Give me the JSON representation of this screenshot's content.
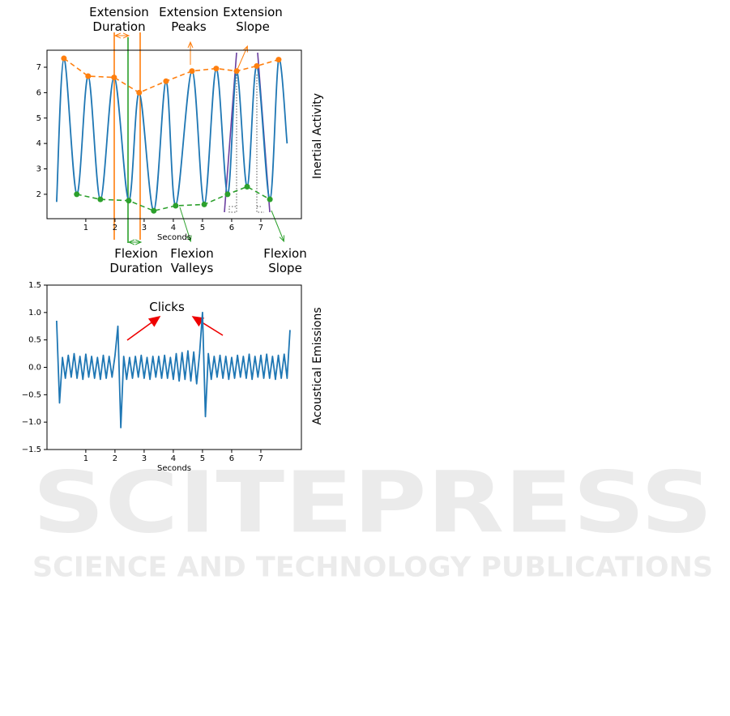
{
  "chart_data": [
    {
      "type": "line",
      "xlabel": "Seconds",
      "side_label": "Inertial Activity",
      "xlim": [
        -0.33,
        8.39
      ],
      "ylim": [
        1.04,
        7.67
      ],
      "xticks": [
        1,
        2,
        3,
        4,
        5,
        6,
        7
      ],
      "yticks": [
        2,
        3,
        4,
        5,
        6,
        7
      ],
      "annotations": [
        "Extension Duration",
        "Extension Peaks",
        "Extension Slope",
        "Flexion Duration",
        "Flexion Valleys",
        "Flexion Slope"
      ],
      "series": [
        {
          "color": "#1f77b4",
          "smooth": true,
          "x": [
            0,
            0.25,
            0.69,
            1.08,
            1.5,
            1.97,
            2.47,
            2.83,
            3.33,
            3.75,
            4.08,
            4.64,
            5.06,
            5.47,
            5.86,
            6.17,
            6.53,
            6.86,
            7.31,
            7.61,
            7.9
          ],
          "values": [
            1.7,
            7.35,
            2.0,
            6.65,
            1.8,
            6.6,
            1.75,
            6.0,
            1.35,
            6.45,
            1.55,
            6.85,
            1.6,
            6.95,
            2.0,
            6.85,
            2.3,
            7.05,
            1.8,
            7.3,
            4.0
          ]
        },
        {
          "color": "#ff7f0e",
          "dashed": true,
          "markers": true,
          "x": [
            0.25,
            1.08,
            1.97,
            2.83,
            3.75,
            4.64,
            5.47,
            6.17,
            6.86,
            7.61
          ],
          "values": [
            7.35,
            6.65,
            6.6,
            6.0,
            6.45,
            6.85,
            6.95,
            6.85,
            7.05,
            7.3
          ]
        },
        {
          "color": "#2ca02c",
          "dashed": true,
          "markers": true,
          "x": [
            0.69,
            1.5,
            2.47,
            3.33,
            4.08,
            5.06,
            5.86,
            6.53,
            7.31
          ],
          "values": [
            2.0,
            1.8,
            1.75,
            1.35,
            1.55,
            1.6,
            2.0,
            2.3,
            1.8
          ]
        }
      ]
    },
    {
      "type": "line",
      "xlabel": "Seconds",
      "side_label": "Acoustical Emissions",
      "xlim": [
        -0.33,
        8.39
      ],
      "ylim": [
        -1.5,
        1.5
      ],
      "xticks": [
        1,
        2,
        3,
        4,
        5,
        6,
        7
      ],
      "yticks": [
        {
          "value": -1.5,
          "label": "−1.5"
        },
        {
          "value": -1,
          "label": "−1.0"
        },
        {
          "value": -0.5,
          "label": "−0.5"
        },
        {
          "value": 0,
          "label": "0.0"
        },
        {
          "value": 0.5,
          "label": "0.5"
        },
        {
          "value": 1,
          "label": "1.0"
        },
        {
          "value": 1.5,
          "label": "1.5"
        }
      ],
      "annotations": [
        "Clicks"
      ],
      "series": [
        {
          "color": "#1f77b4",
          "x": [
            0,
            0.1,
            0.2,
            0.3,
            0.4,
            0.5,
            0.6,
            0.7,
            0.8,
            0.9,
            1,
            1.1,
            1.2,
            1.3,
            1.4,
            1.5,
            1.6,
            1.7,
            1.8,
            1.9,
            2,
            2.1,
            2.2,
            2.3,
            2.4,
            2.5,
            2.6,
            2.7,
            2.8,
            2.9,
            3,
            3.1,
            3.2,
            3.3,
            3.4,
            3.5,
            3.6,
            3.7,
            3.8,
            3.9,
            4,
            4.1,
            4.2,
            4.3,
            4.4,
            4.5,
            4.6,
            4.7,
            4.8,
            4.9,
            5,
            5.1,
            5.2,
            5.3,
            5.4,
            5.5,
            5.6,
            5.7,
            5.8,
            5.9,
            6,
            6.1,
            6.2,
            6.3,
            6.4,
            6.5,
            6.6,
            6.7,
            6.8,
            6.9,
            7,
            7.1,
            7.2,
            7.3,
            7.4,
            7.5,
            7.6,
            7.7,
            7.8,
            7.9,
            8
          ],
          "values": [
            0.85,
            -0.65,
            0.18,
            -0.2,
            0.22,
            -0.18,
            0.25,
            -0.2,
            0.2,
            -0.22,
            0.24,
            -0.18,
            0.2,
            -0.2,
            0.18,
            -0.22,
            0.22,
            -0.2,
            0.2,
            -0.18,
            0.21,
            0.75,
            -1.1,
            0.2,
            -0.22,
            0.18,
            -0.2,
            0.2,
            -0.18,
            0.22,
            -0.2,
            0.18,
            -0.22,
            0.2,
            -0.18,
            0.2,
            -0.2,
            0.22,
            -0.2,
            0.18,
            -0.22,
            0.25,
            -0.25,
            0.27,
            -0.22,
            0.3,
            -0.25,
            0.28,
            -0.3,
            0.25,
            1.0,
            -0.9,
            0.25,
            -0.22,
            0.2,
            -0.18,
            0.22,
            -0.2,
            0.2,
            -0.22,
            0.18,
            -0.2,
            0.22,
            -0.18,
            0.2,
            -0.2,
            0.24,
            -0.22,
            0.2,
            -0.18,
            0.22,
            -0.2,
            0.24,
            -0.2,
            0.2,
            -0.22,
            0.22,
            -0.2,
            0.24,
            -0.2,
            0.68
          ]
        }
      ]
    }
  ],
  "watermark": {
    "title": "SCITEPRESS",
    "subtitle": "SCIENCE AND TECHNOLOGY PUBLICATIONS"
  }
}
